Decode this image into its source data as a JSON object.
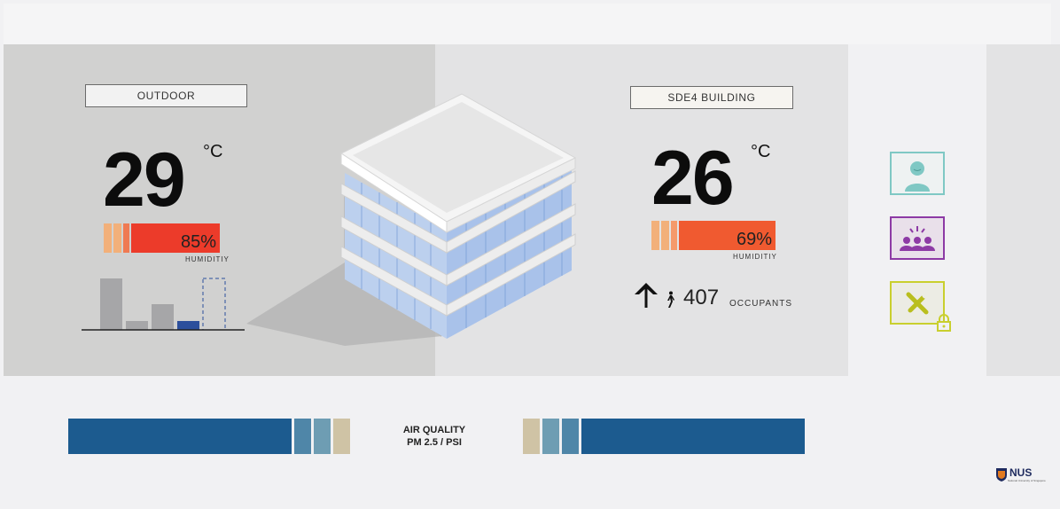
{
  "outdoor": {
    "label": "OUTDOOR",
    "temperature": "29",
    "unit": "°C",
    "humidity_text": "85%",
    "humidity_value": 85,
    "humidity_label": "HUMIDITIY",
    "bars": {
      "values": [
        58,
        10,
        29,
        10,
        58
      ],
      "colors": [
        "#a6a6a8",
        "#a6a6a8",
        "#a6a6a8",
        "#2c4f9c",
        "none"
      ],
      "last_dashed": true
    }
  },
  "building": {
    "label": "SDE4 BUILDING",
    "temperature": "26",
    "unit": "°C",
    "humidity_text": "69%",
    "humidity_value": 69,
    "humidity_label": "HUMIDITIY",
    "occupants_count": "407",
    "occupants_label": "OCCUPANTS",
    "occupancy_trend": "up-arrow-icon"
  },
  "side_buttons": [
    {
      "icon": "user-avatar-icon",
      "color": "#7fc8c4"
    },
    {
      "icon": "group-icon",
      "color": "#8d3aa5"
    },
    {
      "icon": "tools-icon",
      "color": "#c9cf2e",
      "locked": true
    }
  ],
  "air_quality": {
    "label_line1": "AIR QUALITY",
    "label_line2": "PM 2.5 / PSI",
    "colors": {
      "dark": "#1c5b8f",
      "mid": "#4f86a8",
      "light": "#6e9db3",
      "sand": "#cfc3a5"
    }
  },
  "logo": {
    "text": "NUS",
    "subtext": "National University of Singapore"
  },
  "colors": {
    "panel_left": "#d1d1d0",
    "panel_right": "#e3e3e4",
    "humidity_red": "#ec3b2a",
    "humidity_orange": "#f05a30",
    "humidity_peach": "#f2b07a"
  }
}
